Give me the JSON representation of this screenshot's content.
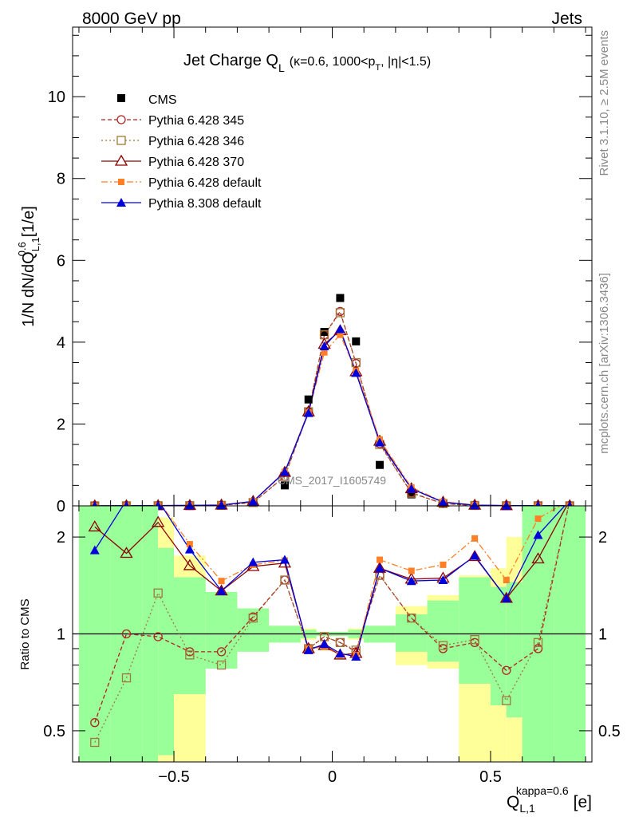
{
  "header": {
    "left": "8000 GeV pp",
    "right": "Jets"
  },
  "side_labels": {
    "rivet": "Rivet 3.1.10, ≥ 2.5M events",
    "mcplots": "mcplots.cern.ch [arXiv:1306.3436]"
  },
  "watermark": "CMS_2017_I1605749",
  "colors": {
    "cms": "#000000",
    "p345": "#b22222",
    "p346": "#a0783c",
    "p370": "#8b0000",
    "p6def": "#ff7f27",
    "p8def": "#0000dd",
    "band_inner": "#99ff99",
    "band_outer": "#ffff99"
  },
  "chart_data": [
    {
      "type": "line",
      "title": "Jet Charge Q",
      "title_sub": "L",
      "title_detail": "(κ=0.6, 1000<p",
      "title_detail_sub": "T",
      "title_detail_tail": ", |η|<1.5)",
      "ylabel": "1/N dN/dQ",
      "ylabel_sup": "0.6",
      "ylabel_sub": "L,1",
      "ylabel_unit": "[1/e]",
      "xlim": [
        -0.82,
        0.82
      ],
      "ylim": [
        0,
        11.7
      ],
      "yticks": [
        0,
        2,
        4,
        6,
        8,
        10
      ],
      "x": [
        -0.75,
        -0.65,
        -0.55,
        -0.45,
        -0.35,
        -0.25,
        -0.15,
        -0.075,
        -0.025,
        0.025,
        0.075,
        0.15,
        0.25,
        0.35,
        0.45,
        0.55,
        0.65,
        0.75
      ],
      "series": [
        {
          "name": "CMS",
          "key": "cms",
          "marker": "square-filled",
          "dash": "",
          "values": [
            0.001,
            0.002,
            0.003,
            0.006,
            0.015,
            0.07,
            0.5,
            2.6,
            4.25,
            5.08,
            4.02,
            1.0,
            0.28,
            0.06,
            0.01,
            0.005,
            0.003,
            0.001
          ]
        },
        {
          "name": "Pythia 6.428 345",
          "key": "p345",
          "marker": "circle-open",
          "dash": "5,3",
          "values": [
            0.0005,
            0.002,
            0.003,
            0.006,
            0.014,
            0.08,
            0.72,
            2.3,
            4.18,
            4.75,
            3.48,
            1.52,
            0.32,
            0.055,
            0.01,
            0.004,
            0.003,
            0.002
          ]
        },
        {
          "name": "Pythia 6.428 346",
          "key": "p346",
          "marker": "square-open",
          "dash": "2,3",
          "values": [
            0.0005,
            0.0015,
            0.004,
            0.005,
            0.012,
            0.08,
            0.72,
            2.3,
            4.18,
            4.72,
            3.5,
            1.5,
            0.31,
            0.055,
            0.01,
            0.003,
            0.003,
            0.002
          ]
        },
        {
          "name": "Pythia 6.428 370",
          "key": "p370",
          "marker": "triangle-open",
          "dash": "",
          "values": [
            0.002,
            0.004,
            0.006,
            0.01,
            0.02,
            0.11,
            0.82,
            2.3,
            3.95,
            4.28,
            3.28,
            1.58,
            0.42,
            0.09,
            0.017,
            0.006,
            0.005,
            0.003
          ]
        },
        {
          "name": "Pythia 6.428 default",
          "key": "p6def",
          "marker": "square-filled",
          "dash": "8,3,2,3",
          "values": [
            0.003,
            0.006,
            0.01,
            0.012,
            0.022,
            0.11,
            0.83,
            2.28,
            3.75,
            4.18,
            3.3,
            1.62,
            0.45,
            0.1,
            0.02,
            0.007,
            0.006,
            0.004
          ]
        },
        {
          "name": "Pythia 8.308 default",
          "key": "p8def",
          "marker": "triangle-filled",
          "dash": "",
          "values": [
            0.002,
            0.005,
            0.008,
            0.011,
            0.02,
            0.11,
            0.83,
            2.27,
            3.9,
            4.32,
            3.25,
            1.55,
            0.42,
            0.09,
            0.017,
            0.006,
            0.005,
            0.003
          ]
        }
      ]
    },
    {
      "type": "line",
      "ylabel": "Ratio to CMS",
      "xlabel": "Q",
      "xlabel_sup": "kappa=0.6",
      "xlabel_sub": "L,1",
      "xlabel_unit": "[e]",
      "scale": "log",
      "xlim": [
        -0.82,
        0.82
      ],
      "ylim": [
        0.4,
        2.5
      ],
      "yticks": [
        0.5,
        1,
        2
      ],
      "xticks": [
        -0.5,
        0,
        0.5
      ],
      "reference_line": 1,
      "bands": {
        "edges": [
          -0.8,
          -0.7,
          -0.6,
          -0.55,
          -0.5,
          -0.4,
          -0.3,
          -0.2,
          -0.1,
          -0.05,
          0.0,
          0.05,
          0.1,
          0.2,
          0.3,
          0.4,
          0.5,
          0.55,
          0.6,
          0.7,
          0.8
        ],
        "inner": [
          [
            0.4,
            2.6
          ],
          [
            0.4,
            2.6
          ],
          [
            0.4,
            2.6
          ],
          [
            0.42,
            1.85
          ],
          [
            0.65,
            1.5
          ],
          [
            0.78,
            1.35
          ],
          [
            0.88,
            1.2
          ],
          [
            0.94,
            1.06
          ],
          [
            0.97,
            1.03
          ],
          [
            0.985,
            1.015
          ],
          [
            0.985,
            1.015
          ],
          [
            0.97,
            1.03
          ],
          [
            0.94,
            1.06
          ],
          [
            0.88,
            1.15
          ],
          [
            0.82,
            1.27
          ],
          [
            0.7,
            1.5
          ],
          [
            0.6,
            1.4
          ],
          [
            0.55,
            1.45
          ],
          [
            0.4,
            2.6
          ],
          [
            0.4,
            2.6
          ]
        ],
        "outer": [
          [
            0.4,
            2.6
          ],
          [
            0.4,
            2.6
          ],
          [
            0.4,
            2.6
          ],
          [
            0.4,
            2.3
          ],
          [
            0.4,
            1.75
          ],
          [
            0.85,
            1.3
          ],
          [
            0.9,
            1.2
          ],
          [
            0.94,
            1.06
          ],
          [
            0.96,
            1.04
          ],
          [
            0.985,
            1.015
          ],
          [
            0.985,
            1.015
          ],
          [
            0.96,
            1.04
          ],
          [
            0.94,
            1.06
          ],
          [
            0.8,
            1.22
          ],
          [
            0.78,
            1.32
          ],
          [
            0.4,
            1.52
          ],
          [
            0.4,
            1.6
          ],
          [
            0.4,
            2.0
          ],
          [
            0.4,
            2.6
          ],
          [
            0.4,
            2.6
          ]
        ]
      },
      "x": [
        -0.75,
        -0.65,
        -0.55,
        -0.45,
        -0.35,
        -0.25,
        -0.15,
        -0.075,
        -0.025,
        0.025,
        0.075,
        0.15,
        0.25,
        0.35,
        0.45,
        0.55,
        0.65,
        0.75
      ],
      "series": [
        {
          "name": "Pythia 6.428 345",
          "key": "p345",
          "marker": "circle-open",
          "dash": "5,3",
          "values": [
            0.53,
            1.0,
            0.98,
            0.88,
            0.88,
            1.13,
            1.47,
            0.9,
            0.98,
            0.94,
            0.88,
            1.52,
            1.12,
            0.9,
            0.94,
            0.77,
            0.9,
            2.6
          ]
        },
        {
          "name": "Pythia 6.428 346",
          "key": "p346",
          "marker": "square-open",
          "dash": "2,3",
          "values": [
            0.46,
            0.73,
            1.34,
            0.86,
            0.8,
            1.12,
            1.47,
            0.9,
            0.98,
            0.94,
            0.89,
            1.52,
            1.12,
            0.92,
            0.96,
            0.62,
            0.94,
            2.6
          ]
        },
        {
          "name": "Pythia 6.428 370",
          "key": "p370",
          "marker": "triangle-open",
          "dash": "",
          "values": [
            2.15,
            1.78,
            2.22,
            1.63,
            1.36,
            1.62,
            1.66,
            0.9,
            0.92,
            0.86,
            0.87,
            1.6,
            1.48,
            1.49,
            1.74,
            1.29,
            1.71,
            2.6
          ]
        },
        {
          "name": "Pythia 6.428 default",
          "key": "p6def",
          "marker": "square-filled",
          "dash": "8,3,2,3",
          "values": [
            2.6,
            2.6,
            2.6,
            1.9,
            1.46,
            1.64,
            1.69,
            0.9,
            0.91,
            0.86,
            0.86,
            1.7,
            1.57,
            1.64,
            1.98,
            1.47,
            2.28,
            2.6
          ]
        },
        {
          "name": "Pythia 8.308 default",
          "key": "p8def",
          "marker": "triangle-filled",
          "dash": "",
          "values": [
            1.82,
            2.6,
            2.6,
            1.83,
            1.36,
            1.67,
            1.7,
            0.89,
            0.93,
            0.87,
            0.85,
            1.6,
            1.46,
            1.47,
            1.75,
            1.29,
            2.03,
            2.6
          ]
        }
      ]
    }
  ]
}
